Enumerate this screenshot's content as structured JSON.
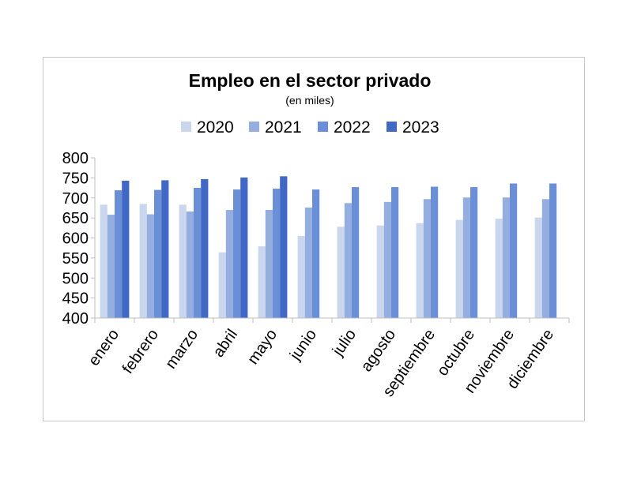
{
  "chart_data": {
    "type": "bar",
    "title": "Empleo en el sector privado",
    "subtitle": "(en miles)",
    "categories": [
      "enero",
      "febrero",
      "marzo",
      "abril",
      "mayo",
      "junio",
      "julio",
      "agosto",
      "septiembre",
      "octubre",
      "noviembre",
      "diciembre"
    ],
    "series": [
      {
        "name": "2020",
        "color": "#c9d6ee",
        "values": [
          683,
          685,
          683,
          564,
          579,
          605,
          628,
          631,
          637,
          645,
          648,
          651
        ]
      },
      {
        "name": "2021",
        "color": "#94afdf",
        "values": [
          658,
          659,
          666,
          670,
          670,
          676,
          687,
          690,
          697,
          701,
          701,
          697
        ]
      },
      {
        "name": "2022",
        "color": "#6b8fd6",
        "values": [
          719,
          720,
          725,
          721,
          723,
          721,
          727,
          727,
          728,
          727,
          736,
          736
        ]
      },
      {
        "name": "2023",
        "color": "#4068c4",
        "values": [
          743,
          744,
          747,
          751,
          754,
          null,
          null,
          null,
          null,
          null,
          null,
          null
        ]
      }
    ],
    "ylim": [
      400,
      800
    ],
    "yticks": [
      400,
      450,
      500,
      550,
      600,
      650,
      700,
      750,
      800
    ],
    "xlabel": "",
    "ylabel": "",
    "grid": false,
    "legend": "top"
  }
}
